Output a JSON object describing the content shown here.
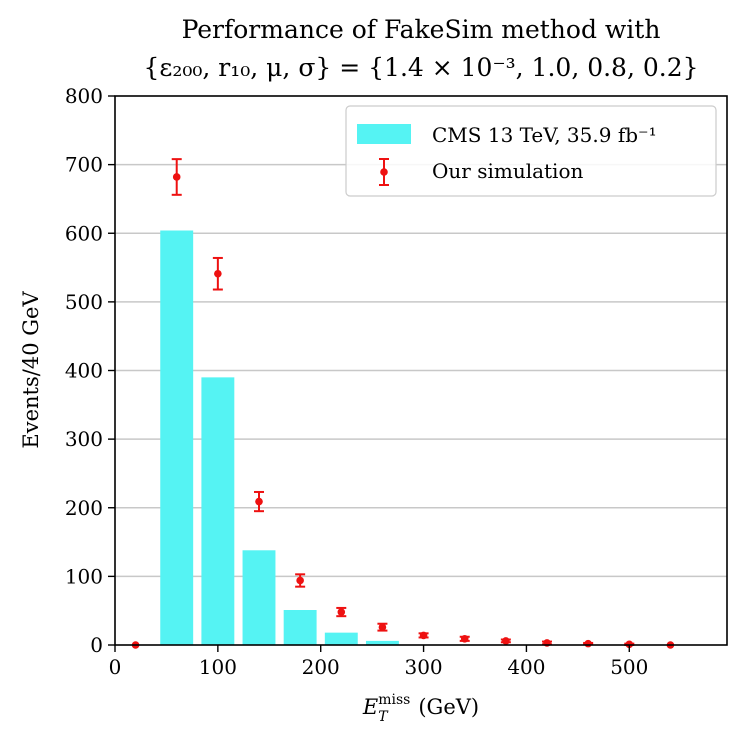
{
  "chart_data": {
    "type": "bar",
    "title_lines": [
      "Performance of FakeSim method with",
      "{ε₂₀₀, r₁₀, μ, σ} = {1.4 × 10⁻³, 1.0, 0.8, 0.2}"
    ],
    "xlabel": "E_T^miss (GeV)",
    "xlabel_parts": {
      "main": "E",
      "sub": "T",
      "sup": "miss",
      "rest": " (GeV)"
    },
    "ylabel": "Events/40 GeV",
    "xlim": [
      0,
      595
    ],
    "ylim": [
      0,
      800
    ],
    "xticks": [
      0,
      100,
      200,
      300,
      400,
      500
    ],
    "yticks": [
      0,
      100,
      200,
      300,
      400,
      500,
      600,
      700,
      800
    ],
    "grid": "horizontal",
    "legend_position": "top-right",
    "bar_width": 32,
    "series": [
      {
        "name": "CMS 13 TeV, 35.9 fb⁻¹",
        "kind": "bar",
        "color": "#55f3f3",
        "x": [
          60,
          100,
          140,
          180,
          220,
          260
        ],
        "values": [
          604,
          390,
          138,
          51,
          18,
          6
        ]
      },
      {
        "name": "Our simulation",
        "kind": "errorbar",
        "color": "#ee1111",
        "x": [
          20,
          60,
          100,
          140,
          180,
          220,
          260,
          300,
          340,
          380,
          420,
          460,
          500,
          540
        ],
        "values": [
          0,
          682,
          541,
          209,
          94,
          48,
          26,
          14,
          9,
          6,
          3,
          2,
          1,
          0
        ],
        "errors": [
          0,
          26,
          23,
          14,
          9,
          6,
          5,
          3,
          3,
          2,
          2,
          1,
          1,
          0
        ]
      }
    ]
  }
}
